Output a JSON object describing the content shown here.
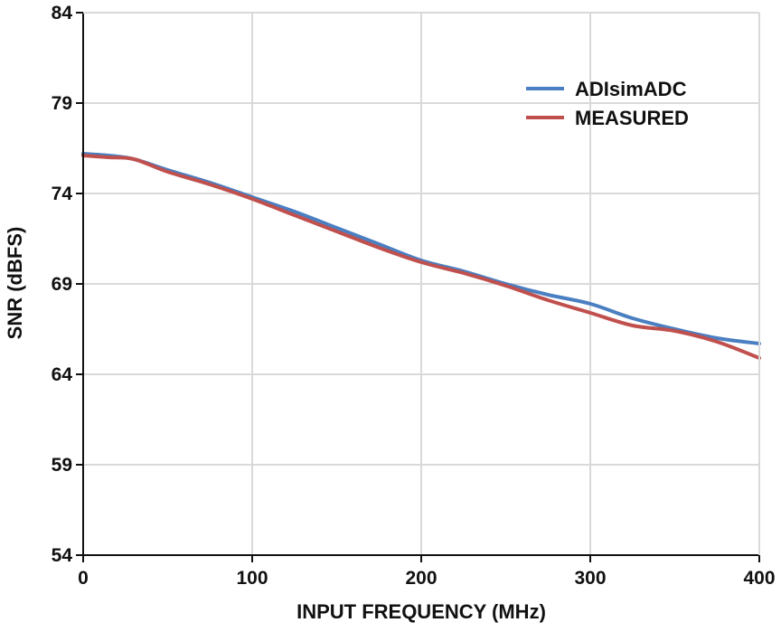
{
  "chart_data": {
    "type": "line",
    "title": "",
    "xlabel": "INPUT FREQUENCY (MHz)",
    "ylabel": "SNR (dBFS)",
    "xlim": [
      0,
      400
    ],
    "ylim": [
      54,
      84
    ],
    "xticks": [
      0,
      100,
      200,
      300,
      400
    ],
    "yticks": [
      54,
      59,
      64,
      69,
      74,
      79,
      84
    ],
    "grid": true,
    "legend_position": "top-right",
    "series": [
      {
        "name": "ADIsimADC",
        "color": "#4a7fc1",
        "x": [
          0,
          15,
          30,
          50,
          75,
          100,
          125,
          150,
          175,
          200,
          225,
          250,
          275,
          300,
          325,
          350,
          375,
          400
        ],
        "y": [
          76.2,
          76.1,
          75.9,
          75.3,
          74.6,
          73.8,
          73.0,
          72.1,
          71.2,
          70.3,
          69.7,
          69.0,
          68.4,
          67.9,
          67.1,
          66.5,
          66.0,
          65.7
        ]
      },
      {
        "name": "MEASURED",
        "color": "#c0504d",
        "x": [
          0,
          15,
          30,
          50,
          75,
          100,
          125,
          150,
          175,
          200,
          225,
          250,
          275,
          300,
          325,
          350,
          375,
          400
        ],
        "y": [
          76.1,
          76.0,
          75.9,
          75.2,
          74.5,
          73.7,
          72.8,
          71.9,
          71.0,
          70.2,
          69.6,
          68.9,
          68.1,
          67.4,
          66.7,
          66.4,
          65.8,
          64.9
        ]
      }
    ]
  }
}
